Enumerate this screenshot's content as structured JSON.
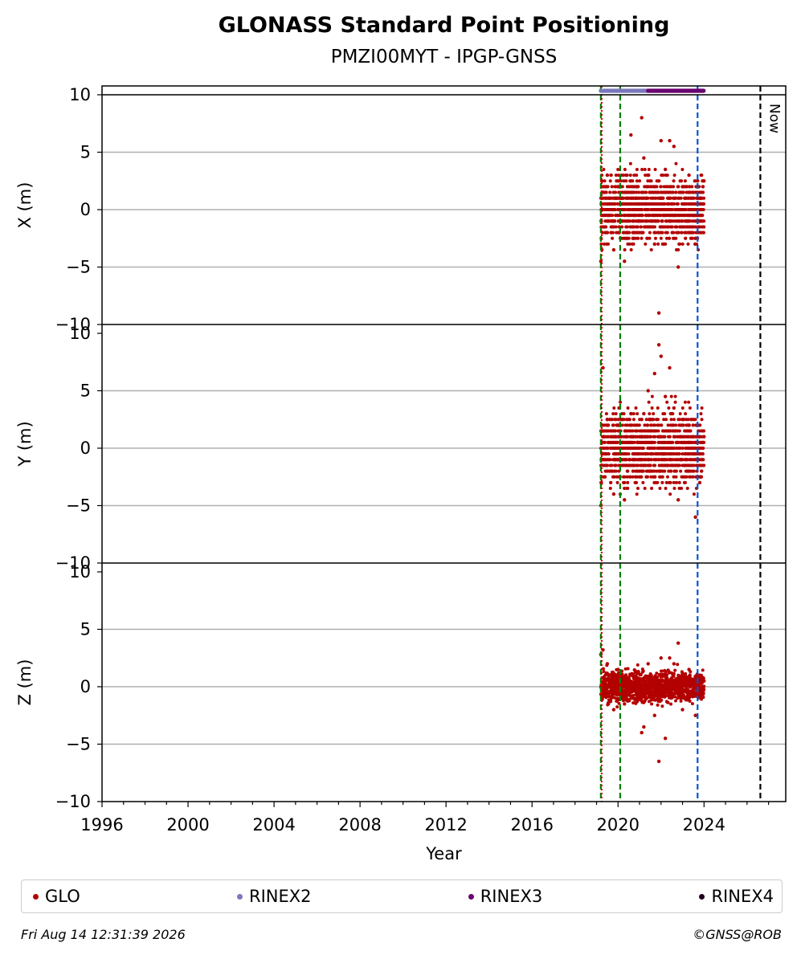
{
  "chart_data": {
    "type": "scatter",
    "title": "GLONASS Standard Point Positioning",
    "subtitle": "PMZI00MYT - IPGP-GNSS",
    "xlabel": "Year",
    "xlim": [
      1996,
      2027.8
    ],
    "xticks": [
      1996,
      2000,
      2004,
      2008,
      2012,
      2016,
      2020,
      2024
    ],
    "grid": "horizontal",
    "panels": [
      {
        "ylabel": "X (m)",
        "ylim": [
          -10,
          10
        ],
        "yticks": [
          -10,
          -5,
          0,
          5,
          10
        ]
      },
      {
        "ylabel": "Y (m)",
        "ylim": [
          -10,
          10
        ],
        "yticks": [
          -10,
          -5,
          0,
          5,
          10
        ]
      },
      {
        "ylabel": "Z (m)",
        "ylim": [
          -10,
          10
        ],
        "yticks": [
          -10,
          -5,
          0,
          5,
          10
        ]
      }
    ],
    "series": [
      {
        "name": "GLO",
        "color": "#b30000",
        "x": [
          2019.2,
          2019.3,
          2019.5,
          2019.8,
          2020.0,
          2020.3,
          2020.6,
          2020.9,
          2021.1,
          2021.2,
          2021.4,
          2021.7,
          2021.9,
          2022.0,
          2022.2,
          2022.4,
          2022.6,
          2022.8,
          2023.0,
          2023.3,
          2023.6,
          2023.8,
          2024.0
        ],
        "x_offset": [
          -4.5,
          1.5,
          3.0,
          -3.5,
          2.0,
          -4.5,
          6.5,
          2.0,
          8.0,
          4.5,
          3.0,
          -3.0,
          -9.0,
          6.0,
          3.5,
          6.0,
          5.5,
          -5.0,
          2.0,
          3.0,
          -2.5,
          0.5,
          2.5
        ],
        "y_offset": [
          -5.0,
          7.0,
          2.5,
          -4.0,
          2.0,
          -4.5,
          3.0,
          0.5,
          2.5,
          3.0,
          5.0,
          6.5,
          9.0,
          8.0,
          4.5,
          7.0,
          3.5,
          -4.5,
          2.5,
          2.0,
          -6.0,
          -3.0,
          1.0
        ],
        "z_offset": [
          2.8,
          3.2,
          2.0,
          -2.0,
          1.5,
          -1.5,
          1.0,
          -1.0,
          -4.0,
          -3.5,
          2.0,
          -2.5,
          -6.5,
          2.5,
          -4.5,
          2.5,
          2.0,
          3.8,
          -2.0,
          1.5,
          -2.5,
          1.0,
          0.5
        ]
      }
    ],
    "data_file_availability": [
      {
        "name": "RINEX2",
        "color": "#7b78bb",
        "start": 2019.2,
        "end": 2021.4
      },
      {
        "name": "RINEX3",
        "color": "#6a0070",
        "start": 2021.4,
        "end": 2024.0
      },
      {
        "name": "RINEX4",
        "color": "#22001f",
        "start": null,
        "end": null
      }
    ],
    "events": [
      {
        "x": 2019.2,
        "color": "#008000",
        "style": "dashed"
      },
      {
        "x": 2019.24,
        "color": "#d00000",
        "style": "dotted"
      },
      {
        "x": 2020.1,
        "color": "#008000",
        "style": "dashed"
      },
      {
        "x": 2023.7,
        "color": "#0055cc",
        "style": "dashed"
      },
      {
        "x": 2026.62,
        "color": "#000000",
        "style": "dashed",
        "label": "Now"
      }
    ],
    "legend": {
      "position": "bottom",
      "entries": [
        {
          "name": "GLO",
          "color": "#b30000"
        },
        {
          "name": "RINEX2",
          "color": "#7b78bb"
        },
        {
          "name": "RINEX3",
          "color": "#6a0070"
        },
        {
          "name": "RINEX4",
          "color": "#22001f"
        }
      ]
    }
  },
  "footer": {
    "timestamp": "Fri Aug 14 12:31:39 2026",
    "credit": "©GNSS@ROB"
  }
}
